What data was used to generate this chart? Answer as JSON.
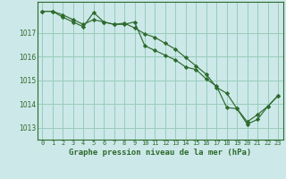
{
  "title": "Graphe pression niveau de la mer (hPa)",
  "bg_color": "#cce8e8",
  "grid_color": "#99ccbb",
  "line_color": "#2d6a2d",
  "marker_color": "#2d6a2d",
  "ylim": [
    1012.5,
    1018.3
  ],
  "yticks": [
    1013,
    1014,
    1015,
    1016,
    1017
  ],
  "xticks": [
    0,
    1,
    2,
    3,
    4,
    5,
    6,
    7,
    8,
    9,
    10,
    11,
    12,
    13,
    14,
    15,
    16,
    17,
    18,
    19,
    20,
    21,
    22,
    23
  ],
  "series1": [
    1017.9,
    1017.9,
    1017.75,
    1017.55,
    1017.35,
    1017.55,
    1017.45,
    1017.35,
    1017.35,
    1017.45,
    1016.45,
    1016.25,
    1016.05,
    1015.85,
    1015.55,
    1015.45,
    1015.05,
    1014.75,
    1013.85,
    1013.8,
    1013.15,
    1013.35,
    1013.9,
    1014.35
  ],
  "series2": [
    1017.9,
    1017.9,
    1017.65,
    1017.45,
    1017.25,
    1017.85,
    1017.45,
    1017.35,
    1017.4,
    1017.2,
    1016.95,
    1016.8,
    1016.55,
    1016.3,
    1015.95,
    1015.6,
    1015.25,
    1014.7,
    1014.45,
    1013.8,
    1013.25,
    1013.55,
    1013.9,
    1014.35
  ]
}
